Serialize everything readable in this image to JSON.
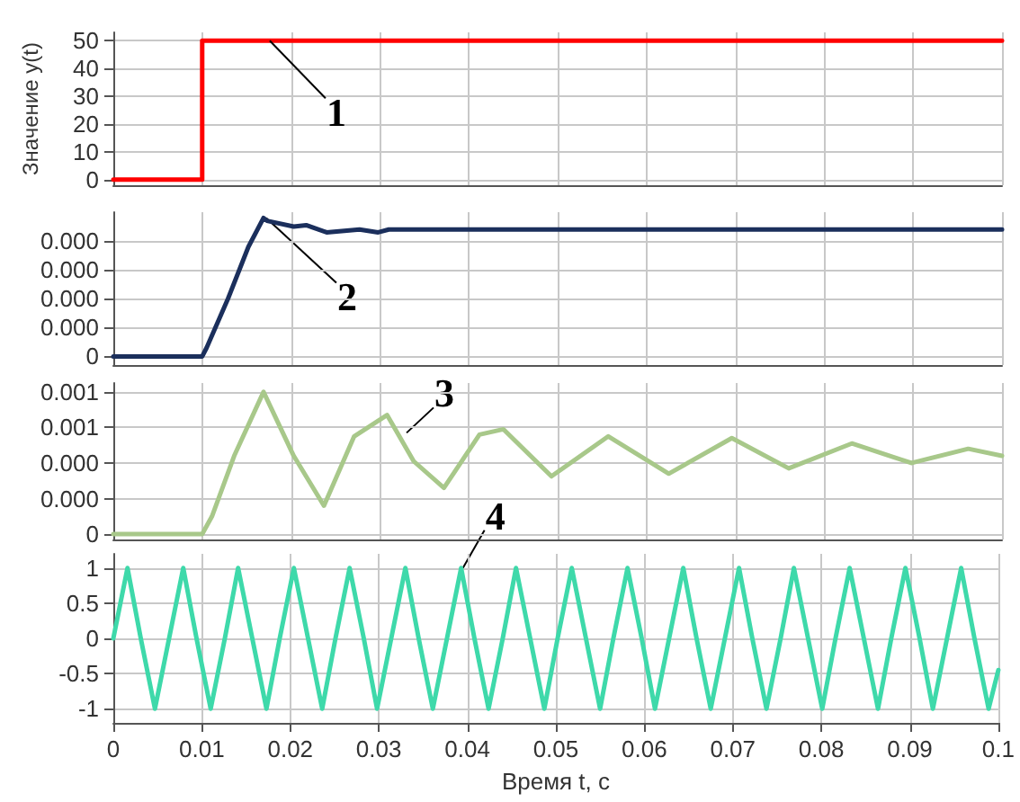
{
  "chart_data": [
    {
      "type": "line",
      "ylabel": "Значение y(t)",
      "xlim": [
        0,
        0.1
      ],
      "xticks": [
        0,
        0.01,
        0.02,
        0.03,
        0.04,
        0.05,
        0.06,
        0.07,
        0.08,
        0.09,
        0.1
      ],
      "ylim": [
        -2,
        53
      ],
      "yticks": [
        0,
        10,
        20,
        30,
        40,
        50
      ],
      "grid": true,
      "tick_labels": "y",
      "annotations": [
        {
          "text": "1",
          "x": 0.0176,
          "y": 50
        }
      ],
      "series": [
        {
          "color": "#ff0000",
          "x": [
            0,
            0.01,
            0.01,
            0.1
          ],
          "values": [
            0,
            0,
            50,
            50
          ]
        }
      ]
    },
    {
      "type": "line",
      "xlim": [
        0,
        0.1
      ],
      "xticks": [
        0,
        0.01,
        0.02,
        0.03,
        0.04,
        0.05,
        0.06,
        0.07,
        0.08,
        0.09,
        0.1
      ],
      "ylim": [
        -3e-05,
        0.0005
      ],
      "yticks": [
        0,
        {
          "value": 0.0001,
          "label": "0.000"
        },
        {
          "value": 0.0002,
          "label": "0.000"
        },
        {
          "value": 0.0003,
          "label": "0.000"
        },
        {
          "value": 0.0004,
          "label": "0.000"
        }
      ],
      "grid": true,
      "tick_labels": "y",
      "annotations": [
        {
          "text": "2",
          "x": 0.0172,
          "y": 0.00048
        }
      ],
      "series": [
        {
          "color": "#1b2f5c",
          "x": [
            0,
            0.01,
            0.0105,
            0.0129,
            0.0152,
            0.0169,
            0.0173,
            0.0203,
            0.0217,
            0.024,
            0.0277,
            0.0298,
            0.031,
            0.1
          ],
          "values": [
            0,
            0,
            3e-05,
            0.0002,
            0.00038,
            0.00048,
            0.00047,
            0.00045,
            0.000455,
            0.00043,
            0.00044,
            0.00043,
            0.00044,
            0.00044
          ]
        }
      ]
    },
    {
      "type": "line",
      "xlim": [
        0,
        0.1
      ],
      "xticks": [
        0,
        0.01,
        0.02,
        0.03,
        0.04,
        0.05,
        0.06,
        0.07,
        0.08,
        0.09,
        0.1
      ],
      "ylim": [
        -3e-05,
        0.00085
      ],
      "yticks": [
        0,
        {
          "value": 0.0002,
          "label": "0.000"
        },
        {
          "value": 0.0004,
          "label": "0.000"
        },
        {
          "value": 0.0006,
          "label": "0.001"
        },
        {
          "value": 0.0008,
          "label": "0.001"
        }
      ],
      "grid": true,
      "tick_labels": "y",
      "annotations": [
        {
          "text": "3",
          "x": 0.033,
          "y": 0.00057
        }
      ],
      "series": [
        {
          "color": "#a8c88a",
          "x": [
            0,
            0.01,
            0.0111,
            0.0136,
            0.0169,
            0.0203,
            0.0237,
            0.0271,
            0.0308,
            0.0338,
            0.0372,
            0.0412,
            0.0439,
            0.0493,
            0.0557,
            0.0625,
            0.0696,
            0.076,
            0.0831,
            0.0898,
            0.0962,
            0.1
          ],
          "values": [
            0,
            0,
            0.0001,
            0.00044,
            0.0008,
            0.00044,
            0.00016,
            0.00055,
            0.00067,
            0.00041,
            0.00026,
            0.00056,
            0.00059,
            0.000325,
            0.00055,
            0.00034,
            0.00054,
            0.00037,
            0.00051,
            0.0004,
            0.00048,
            0.00044
          ]
        }
      ]
    },
    {
      "type": "line",
      "xlabel": "Время t, с",
      "xlim": [
        0,
        0.1
      ],
      "xticks": [
        0,
        0.01,
        0.02,
        0.03,
        0.04,
        0.05,
        0.06,
        0.07,
        0.08,
        0.09,
        0.1
      ],
      "ylim": [
        -1.2,
        1.2
      ],
      "yticks": [
        -1,
        -0.5,
        0,
        0.5,
        1
      ],
      "grid": true,
      "annotations": [
        {
          "text": "4",
          "x": 0.0395,
          "y": 1
        }
      ],
      "series": [
        {
          "color": "#3ed9aa",
          "x": [
            0,
            0.0016,
            0.0031,
            0.0047,
            0.0063,
            0.0079,
            0.0094,
            0.011,
            0.0126,
            0.0141,
            0.0157,
            0.0173,
            0.0188,
            0.0204,
            0.022,
            0.0236,
            0.0251,
            0.0267,
            0.0283,
            0.0298,
            0.0314,
            0.033,
            0.0345,
            0.0361,
            0.0377,
            0.0393,
            0.0408,
            0.0424,
            0.044,
            0.0455,
            0.0471,
            0.0487,
            0.0502,
            0.0518,
            0.0534,
            0.055,
            0.0565,
            0.0581,
            0.0597,
            0.0612,
            0.0628,
            0.0644,
            0.0659,
            0.0675,
            0.0691,
            0.0707,
            0.0722,
            0.0738,
            0.0754,
            0.0769,
            0.0785,
            0.0801,
            0.0816,
            0.0832,
            0.0848,
            0.0864,
            0.0879,
            0.0895,
            0.0911,
            0.0926,
            0.0942,
            0.0958,
            0.0973,
            0.0989,
            0.1
          ],
          "values": [
            0,
            1,
            0,
            -1,
            0,
            1,
            0,
            -1,
            0,
            1,
            0,
            -1,
            0,
            1,
            0,
            -1,
            0,
            1,
            0,
            -1,
            0,
            1,
            0,
            -1,
            0,
            1,
            0,
            -1,
            0,
            1,
            0,
            -1,
            0,
            1,
            0,
            -1,
            0,
            1,
            0,
            -1,
            0,
            1,
            0,
            -1,
            0,
            1,
            0,
            -1,
            0,
            1,
            0,
            -1,
            0,
            1,
            0,
            -1,
            0,
            1,
            0,
            -1,
            0,
            1,
            0,
            -1,
            -0.45
          ]
        }
      ]
    }
  ]
}
